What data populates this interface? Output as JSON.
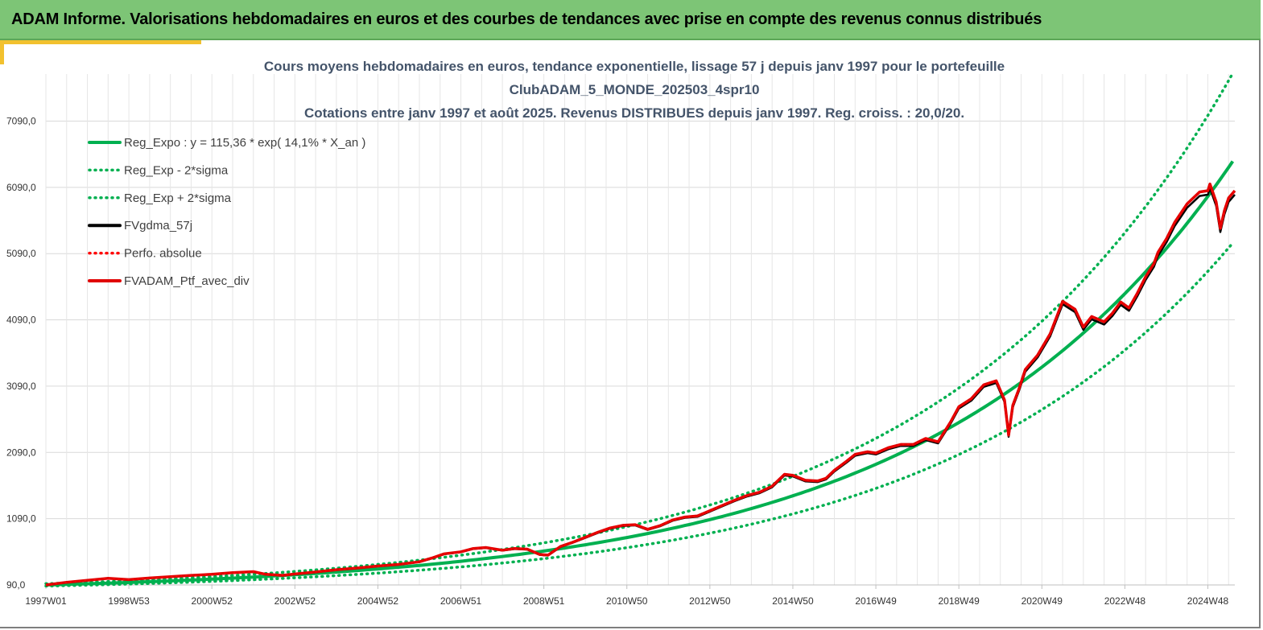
{
  "header": {
    "title": "ADAM Informe. Valorisations hebdomadaires en euros et des courbes de tendances avec prise en compte des revenus connus distribués"
  },
  "colors": {
    "banner": "#7dc576",
    "reg_expo": "#00b050",
    "sigma": "#00b050",
    "fvgdma": "#000000",
    "perfo": "#ff0000",
    "fvadam": "#e00000",
    "accent": "#f2c12e"
  },
  "chart_data": {
    "type": "line",
    "title_lines": [
      "Cours moyens hebdomadaires  en euros, tendance exponentielle, lissage 57 j depuis janv 1997 pour le portefeuille",
      "ClubADAM_5_MONDE_202503_4spr10",
      "Cotations  entre janv 1997 et août 2025. Revenus DISTRIBUES depuis janv 1997. Reg. croiss. : 20,0/20."
    ],
    "x_tick_labels": [
      "1997W01",
      "1998W53",
      "2000W52",
      "2002W52",
      "2004W52",
      "2006W51",
      "2008W51",
      "2010W50",
      "2012W50",
      "2014W50",
      "2016W49",
      "2018W49",
      "2020W49",
      "2022W48",
      "2024W48"
    ],
    "x_tick_years": [
      1997.0,
      1999.0,
      2001.0,
      2003.0,
      2005.0,
      2007.0,
      2009.0,
      2011.0,
      2013.0,
      2015.0,
      2017.0,
      2019.0,
      2021.0,
      2023.0,
      2025.0
    ],
    "x_range": [
      1997.0,
      2025.65
    ],
    "y_tick_labels": [
      "90,0",
      "1090,0",
      "2090,0",
      "3090,0",
      "4090,0",
      "5090,0",
      "6090,0",
      "7090,0"
    ],
    "y_ticks": [
      90,
      1090,
      2090,
      3090,
      4090,
      5090,
      6090,
      7090
    ],
    "ylim": [
      90,
      7800
    ],
    "grid": true,
    "legend_position": "top-left",
    "legend": [
      {
        "key": "reg_expo",
        "label": "Reg_Expo : y = 115,36 * exp( 14,1% *  X_an )",
        "style": "solid-thick"
      },
      {
        "key": "reg_minus",
        "label": "Reg_Exp - 2*sigma",
        "style": "dotted"
      },
      {
        "key": "reg_plus",
        "label": "Reg_Exp + 2*sigma",
        "style": "dotted"
      },
      {
        "key": "fvgdma",
        "label": "FVgdma_57j",
        "style": "solid"
      },
      {
        "key": "perfo",
        "label": "Perfo. absolue",
        "style": "dotted"
      },
      {
        "key": "fvadam",
        "label": "FVADAM_Ptf_avec_div",
        "style": "solid-thick"
      }
    ],
    "regression": {
      "a": 115.36,
      "rate": 0.141,
      "plus_factor": 1.205,
      "minus_factor": 0.81
    },
    "series_ptf": {
      "x": [
        1997.0,
        1997.5,
        1998.0,
        1998.5,
        1999.0,
        1999.5,
        2000.0,
        2000.5,
        2001.0,
        2001.5,
        2002.0,
        2002.3,
        2002.7,
        2003.0,
        2003.5,
        2004.0,
        2004.5,
        2005.0,
        2005.5,
        2006.0,
        2006.3,
        2006.6,
        2007.0,
        2007.3,
        2007.6,
        2008.0,
        2008.3,
        2008.6,
        2008.9,
        2009.1,
        2009.4,
        2009.7,
        2010.0,
        2010.3,
        2010.6,
        2010.9,
        2011.2,
        2011.5,
        2011.8,
        2012.1,
        2012.4,
        2012.7,
        2013.0,
        2013.3,
        2013.6,
        2013.9,
        2014.2,
        2014.5,
        2014.8,
        2015.0,
        2015.3,
        2015.6,
        2015.8,
        2016.0,
        2016.3,
        2016.5,
        2016.8,
        2017.0,
        2017.3,
        2017.6,
        2017.9,
        2018.2,
        2018.5,
        2018.8,
        2019.0,
        2019.3,
        2019.6,
        2019.9,
        2020.1,
        2020.2,
        2020.3,
        2020.45,
        2020.6,
        2020.9,
        2021.2,
        2021.5,
        2021.8,
        2022.0,
        2022.2,
        2022.5,
        2022.7,
        2022.9,
        2023.1,
        2023.3,
        2023.5,
        2023.7,
        2023.8,
        2024.0,
        2024.2,
        2024.5,
        2024.8,
        2025.0,
        2025.05,
        2025.2,
        2025.3,
        2025.4,
        2025.5,
        2025.65
      ],
      "values": [
        90,
        130,
        160,
        190,
        170,
        195,
        215,
        235,
        250,
        275,
        290,
        250,
        235,
        255,
        285,
        320,
        345,
        375,
        400,
        440,
        495,
        560,
        590,
        640,
        655,
        615,
        640,
        630,
        550,
        540,
        670,
        735,
        810,
        885,
        950,
        990,
        1000,
        930,
        985,
        1070,
        1115,
        1130,
        1210,
        1290,
        1370,
        1440,
        1490,
        1580,
        1760,
        1745,
        1670,
        1660,
        1700,
        1820,
        1960,
        2060,
        2100,
        2080,
        2160,
        2210,
        2210,
        2300,
        2250,
        2550,
        2780,
        2900,
        3110,
        3170,
        2880,
        2350,
        2800,
        3050,
        3340,
        3560,
        3880,
        4370,
        4250,
        3980,
        4140,
        4060,
        4190,
        4360,
        4270,
        4490,
        4740,
        4940,
        5110,
        5310,
        5560,
        5840,
        6020,
        6040,
        6140,
        5870,
        5470,
        5740,
        5930,
        6040
      ]
    }
  }
}
